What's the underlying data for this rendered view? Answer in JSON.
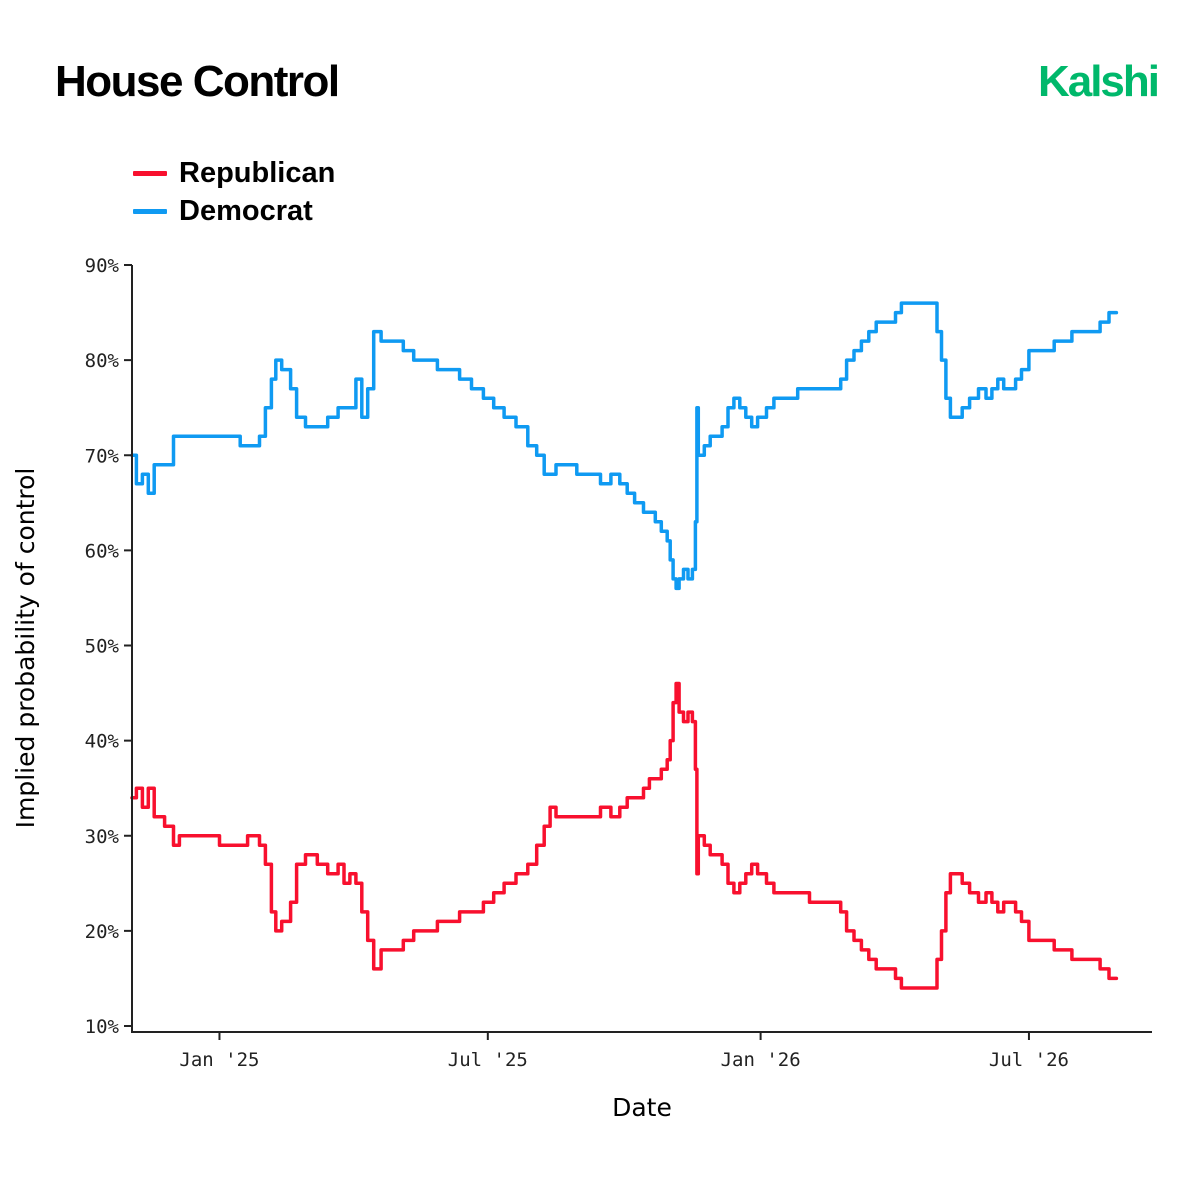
{
  "header": {
    "title": "House Control",
    "brand": "Kalshi"
  },
  "chart_data": {
    "type": "line",
    "title": "House Control",
    "xlabel": "Date",
    "ylabel": "Implied probability of control",
    "x_ticks": [
      {
        "date": "2025-01-01",
        "label": "Jan '25"
      },
      {
        "date": "2025-07-01",
        "label": "Jul '25"
      },
      {
        "date": "2026-01-01",
        "label": "Jan '26"
      },
      {
        "date": "2026-07-01",
        "label": "Jul '26"
      }
    ],
    "y_ticks": [
      "10%",
      "20%",
      "30%",
      "40%",
      "50%",
      "60%",
      "70%",
      "80%",
      "90%"
    ],
    "xlim": [
      "2024-11-03",
      "2026-09-22"
    ],
    "ylim": [
      10,
      90
    ],
    "grid": false,
    "legend_position": "top-left",
    "series": [
      {
        "name": "Republican",
        "color": "#f8102e",
        "points": [
          [
            "2024-11-03",
            34
          ],
          [
            "2024-11-06",
            35
          ],
          [
            "2024-11-10",
            33
          ],
          [
            "2024-11-14",
            35
          ],
          [
            "2024-11-18",
            32
          ],
          [
            "2024-11-25",
            31
          ],
          [
            "2024-12-01",
            29
          ],
          [
            "2024-12-05",
            30
          ],
          [
            "2024-12-15",
            30
          ],
          [
            "2024-12-25",
            30
          ],
          [
            "2025-01-01",
            29
          ],
          [
            "2025-01-07",
            29
          ],
          [
            "2025-01-15",
            29
          ],
          [
            "2025-01-20",
            30
          ],
          [
            "2025-01-28",
            29
          ],
          [
            "2025-02-01",
            27
          ],
          [
            "2025-02-05",
            22
          ],
          [
            "2025-02-08",
            20
          ],
          [
            "2025-02-12",
            21
          ],
          [
            "2025-02-18",
            23
          ],
          [
            "2025-02-22",
            27
          ],
          [
            "2025-02-28",
            28
          ],
          [
            "2025-03-08",
            27
          ],
          [
            "2025-03-15",
            26
          ],
          [
            "2025-03-22",
            27
          ],
          [
            "2025-03-26",
            25
          ],
          [
            "2025-03-30",
            26
          ],
          [
            "2025-04-03",
            25
          ],
          [
            "2025-04-07",
            22
          ],
          [
            "2025-04-11",
            19
          ],
          [
            "2025-04-15",
            16
          ],
          [
            "2025-04-20",
            18
          ],
          [
            "2025-04-28",
            18
          ],
          [
            "2025-05-05",
            19
          ],
          [
            "2025-05-12",
            20
          ],
          [
            "2025-05-20",
            20
          ],
          [
            "2025-05-28",
            21
          ],
          [
            "2025-06-05",
            21
          ],
          [
            "2025-06-12",
            22
          ],
          [
            "2025-06-20",
            22
          ],
          [
            "2025-06-28",
            23
          ],
          [
            "2025-07-05",
            24
          ],
          [
            "2025-07-12",
            25
          ],
          [
            "2025-07-20",
            26
          ],
          [
            "2025-07-28",
            27
          ],
          [
            "2025-08-03",
            29
          ],
          [
            "2025-08-08",
            31
          ],
          [
            "2025-08-12",
            33
          ],
          [
            "2025-08-16",
            32
          ],
          [
            "2025-08-22",
            32
          ],
          [
            "2025-08-30",
            32
          ],
          [
            "2025-09-07",
            32
          ],
          [
            "2025-09-15",
            33
          ],
          [
            "2025-09-22",
            32
          ],
          [
            "2025-09-28",
            33
          ],
          [
            "2025-10-03",
            34
          ],
          [
            "2025-10-08",
            34
          ],
          [
            "2025-10-14",
            35
          ],
          [
            "2025-10-18",
            36
          ],
          [
            "2025-10-22",
            36
          ],
          [
            "2025-10-26",
            37
          ],
          [
            "2025-10-30",
            38
          ],
          [
            "2025-11-01",
            40
          ],
          [
            "2025-11-03",
            44
          ],
          [
            "2025-11-05",
            46
          ],
          [
            "2025-11-07",
            43
          ],
          [
            "2025-11-10",
            42
          ],
          [
            "2025-11-13",
            43
          ],
          [
            "2025-11-16",
            42
          ],
          [
            "2025-11-18",
            37
          ],
          [
            "2025-11-19",
            26
          ],
          [
            "2025-11-20",
            30
          ],
          [
            "2025-11-24",
            29
          ],
          [
            "2025-11-28",
            28
          ],
          [
            "2025-12-02",
            28
          ],
          [
            "2025-12-06",
            27
          ],
          [
            "2025-12-10",
            25
          ],
          [
            "2025-12-14",
            24
          ],
          [
            "2025-12-18",
            25
          ],
          [
            "2025-12-22",
            26
          ],
          [
            "2025-12-26",
            27
          ],
          [
            "2025-12-30",
            26
          ],
          [
            "2026-01-05",
            25
          ],
          [
            "2026-01-10",
            24
          ],
          [
            "2026-01-18",
            24
          ],
          [
            "2026-01-26",
            24
          ],
          [
            "2026-02-03",
            23
          ],
          [
            "2026-02-10",
            23
          ],
          [
            "2026-02-18",
            23
          ],
          [
            "2026-02-24",
            22
          ],
          [
            "2026-02-28",
            20
          ],
          [
            "2026-03-05",
            19
          ],
          [
            "2026-03-10",
            18
          ],
          [
            "2026-03-15",
            17
          ],
          [
            "2026-03-20",
            16
          ],
          [
            "2026-03-28",
            16
          ],
          [
            "2026-04-02",
            15
          ],
          [
            "2026-04-06",
            14
          ],
          [
            "2026-04-10",
            14
          ],
          [
            "2026-04-15",
            14
          ],
          [
            "2026-04-20",
            14
          ],
          [
            "2026-04-26",
            14
          ],
          [
            "2026-04-30",
            17
          ],
          [
            "2026-05-03",
            20
          ],
          [
            "2026-05-06",
            24
          ],
          [
            "2026-05-09",
            26
          ],
          [
            "2026-05-13",
            26
          ],
          [
            "2026-05-17",
            25
          ],
          [
            "2026-05-22",
            24
          ],
          [
            "2026-05-28",
            23
          ],
          [
            "2026-06-02",
            24
          ],
          [
            "2026-06-06",
            23
          ],
          [
            "2026-06-10",
            22
          ],
          [
            "2026-06-14",
            23
          ],
          [
            "2026-06-18",
            23
          ],
          [
            "2026-06-22",
            22
          ],
          [
            "2026-06-26",
            21
          ],
          [
            "2026-07-01",
            19
          ],
          [
            "2026-07-06",
            19
          ],
          [
            "2026-07-12",
            19
          ],
          [
            "2026-07-18",
            18
          ],
          [
            "2026-07-24",
            18
          ],
          [
            "2026-07-30",
            17
          ],
          [
            "2026-08-05",
            17
          ],
          [
            "2026-08-12",
            17
          ],
          [
            "2026-08-18",
            16
          ],
          [
            "2026-08-24",
            15
          ],
          [
            "2026-08-29",
            15
          ]
        ]
      },
      {
        "name": "Democrat",
        "color": "#0f9af2",
        "points": [
          [
            "2024-11-03",
            70
          ],
          [
            "2024-11-06",
            67
          ],
          [
            "2024-11-10",
            68
          ],
          [
            "2024-11-14",
            66
          ],
          [
            "2024-11-18",
            69
          ],
          [
            "2024-11-25",
            69
          ],
          [
            "2024-12-01",
            72
          ],
          [
            "2024-12-05",
            72
          ],
          [
            "2024-12-15",
            72
          ],
          [
            "2024-12-25",
            72
          ],
          [
            "2025-01-01",
            72
          ],
          [
            "2025-01-07",
            72
          ],
          [
            "2025-01-15",
            71
          ],
          [
            "2025-01-20",
            71
          ],
          [
            "2025-01-28",
            72
          ],
          [
            "2025-02-01",
            75
          ],
          [
            "2025-02-05",
            78
          ],
          [
            "2025-02-08",
            80
          ],
          [
            "2025-02-12",
            79
          ],
          [
            "2025-02-18",
            77
          ],
          [
            "2025-02-22",
            74
          ],
          [
            "2025-02-28",
            73
          ],
          [
            "2025-03-08",
            73
          ],
          [
            "2025-03-15",
            74
          ],
          [
            "2025-03-22",
            75
          ],
          [
            "2025-03-26",
            75
          ],
          [
            "2025-03-30",
            75
          ],
          [
            "2025-04-03",
            78
          ],
          [
            "2025-04-07",
            74
          ],
          [
            "2025-04-11",
            77
          ],
          [
            "2025-04-15",
            83
          ],
          [
            "2025-04-20",
            82
          ],
          [
            "2025-04-28",
            82
          ],
          [
            "2025-05-05",
            81
          ],
          [
            "2025-05-12",
            80
          ],
          [
            "2025-05-20",
            80
          ],
          [
            "2025-05-28",
            79
          ],
          [
            "2025-06-05",
            79
          ],
          [
            "2025-06-12",
            78
          ],
          [
            "2025-06-20",
            77
          ],
          [
            "2025-06-28",
            76
          ],
          [
            "2025-07-05",
            75
          ],
          [
            "2025-07-12",
            74
          ],
          [
            "2025-07-20",
            73
          ],
          [
            "2025-07-28",
            71
          ],
          [
            "2025-08-03",
            70
          ],
          [
            "2025-08-08",
            68
          ],
          [
            "2025-08-12",
            68
          ],
          [
            "2025-08-16",
            69
          ],
          [
            "2025-08-22",
            69
          ],
          [
            "2025-08-30",
            68
          ],
          [
            "2025-09-07",
            68
          ],
          [
            "2025-09-15",
            67
          ],
          [
            "2025-09-22",
            68
          ],
          [
            "2025-09-28",
            67
          ],
          [
            "2025-10-03",
            66
          ],
          [
            "2025-10-08",
            65
          ],
          [
            "2025-10-14",
            64
          ],
          [
            "2025-10-18",
            64
          ],
          [
            "2025-10-22",
            63
          ],
          [
            "2025-10-26",
            62
          ],
          [
            "2025-10-30",
            61
          ],
          [
            "2025-11-01",
            59
          ],
          [
            "2025-11-03",
            57
          ],
          [
            "2025-11-05",
            56
          ],
          [
            "2025-11-07",
            57
          ],
          [
            "2025-11-10",
            58
          ],
          [
            "2025-11-13",
            57
          ],
          [
            "2025-11-16",
            58
          ],
          [
            "2025-11-18",
            63
          ],
          [
            "2025-11-19",
            75
          ],
          [
            "2025-11-20",
            70
          ],
          [
            "2025-11-24",
            71
          ],
          [
            "2025-11-28",
            72
          ],
          [
            "2025-12-02",
            72
          ],
          [
            "2025-12-06",
            73
          ],
          [
            "2025-12-10",
            75
          ],
          [
            "2025-12-14",
            76
          ],
          [
            "2025-12-18",
            75
          ],
          [
            "2025-12-22",
            74
          ],
          [
            "2025-12-26",
            73
          ],
          [
            "2025-12-30",
            74
          ],
          [
            "2026-01-05",
            75
          ],
          [
            "2026-01-10",
            76
          ],
          [
            "2026-01-18",
            76
          ],
          [
            "2026-01-26",
            77
          ],
          [
            "2026-02-03",
            77
          ],
          [
            "2026-02-10",
            77
          ],
          [
            "2026-02-18",
            77
          ],
          [
            "2026-02-24",
            78
          ],
          [
            "2026-02-28",
            80
          ],
          [
            "2026-03-05",
            81
          ],
          [
            "2026-03-10",
            82
          ],
          [
            "2026-03-15",
            83
          ],
          [
            "2026-03-20",
            84
          ],
          [
            "2026-03-28",
            84
          ],
          [
            "2026-04-02",
            85
          ],
          [
            "2026-04-06",
            86
          ],
          [
            "2026-04-10",
            86
          ],
          [
            "2026-04-15",
            86
          ],
          [
            "2026-04-20",
            86
          ],
          [
            "2026-04-26",
            86
          ],
          [
            "2026-04-30",
            83
          ],
          [
            "2026-05-03",
            80
          ],
          [
            "2026-05-06",
            76
          ],
          [
            "2026-05-09",
            74
          ],
          [
            "2026-05-13",
            74
          ],
          [
            "2026-05-17",
            75
          ],
          [
            "2026-05-22",
            76
          ],
          [
            "2026-05-28",
            77
          ],
          [
            "2026-06-02",
            76
          ],
          [
            "2026-06-06",
            77
          ],
          [
            "2026-06-10",
            78
          ],
          [
            "2026-06-14",
            77
          ],
          [
            "2026-06-18",
            77
          ],
          [
            "2026-06-22",
            78
          ],
          [
            "2026-06-26",
            79
          ],
          [
            "2026-07-01",
            81
          ],
          [
            "2026-07-06",
            81
          ],
          [
            "2026-07-12",
            81
          ],
          [
            "2026-07-18",
            82
          ],
          [
            "2026-07-24",
            82
          ],
          [
            "2026-07-30",
            83
          ],
          [
            "2026-08-05",
            83
          ],
          [
            "2026-08-12",
            83
          ],
          [
            "2026-08-18",
            84
          ],
          [
            "2026-08-24",
            85
          ],
          [
            "2026-08-29",
            85
          ]
        ]
      }
    ]
  }
}
